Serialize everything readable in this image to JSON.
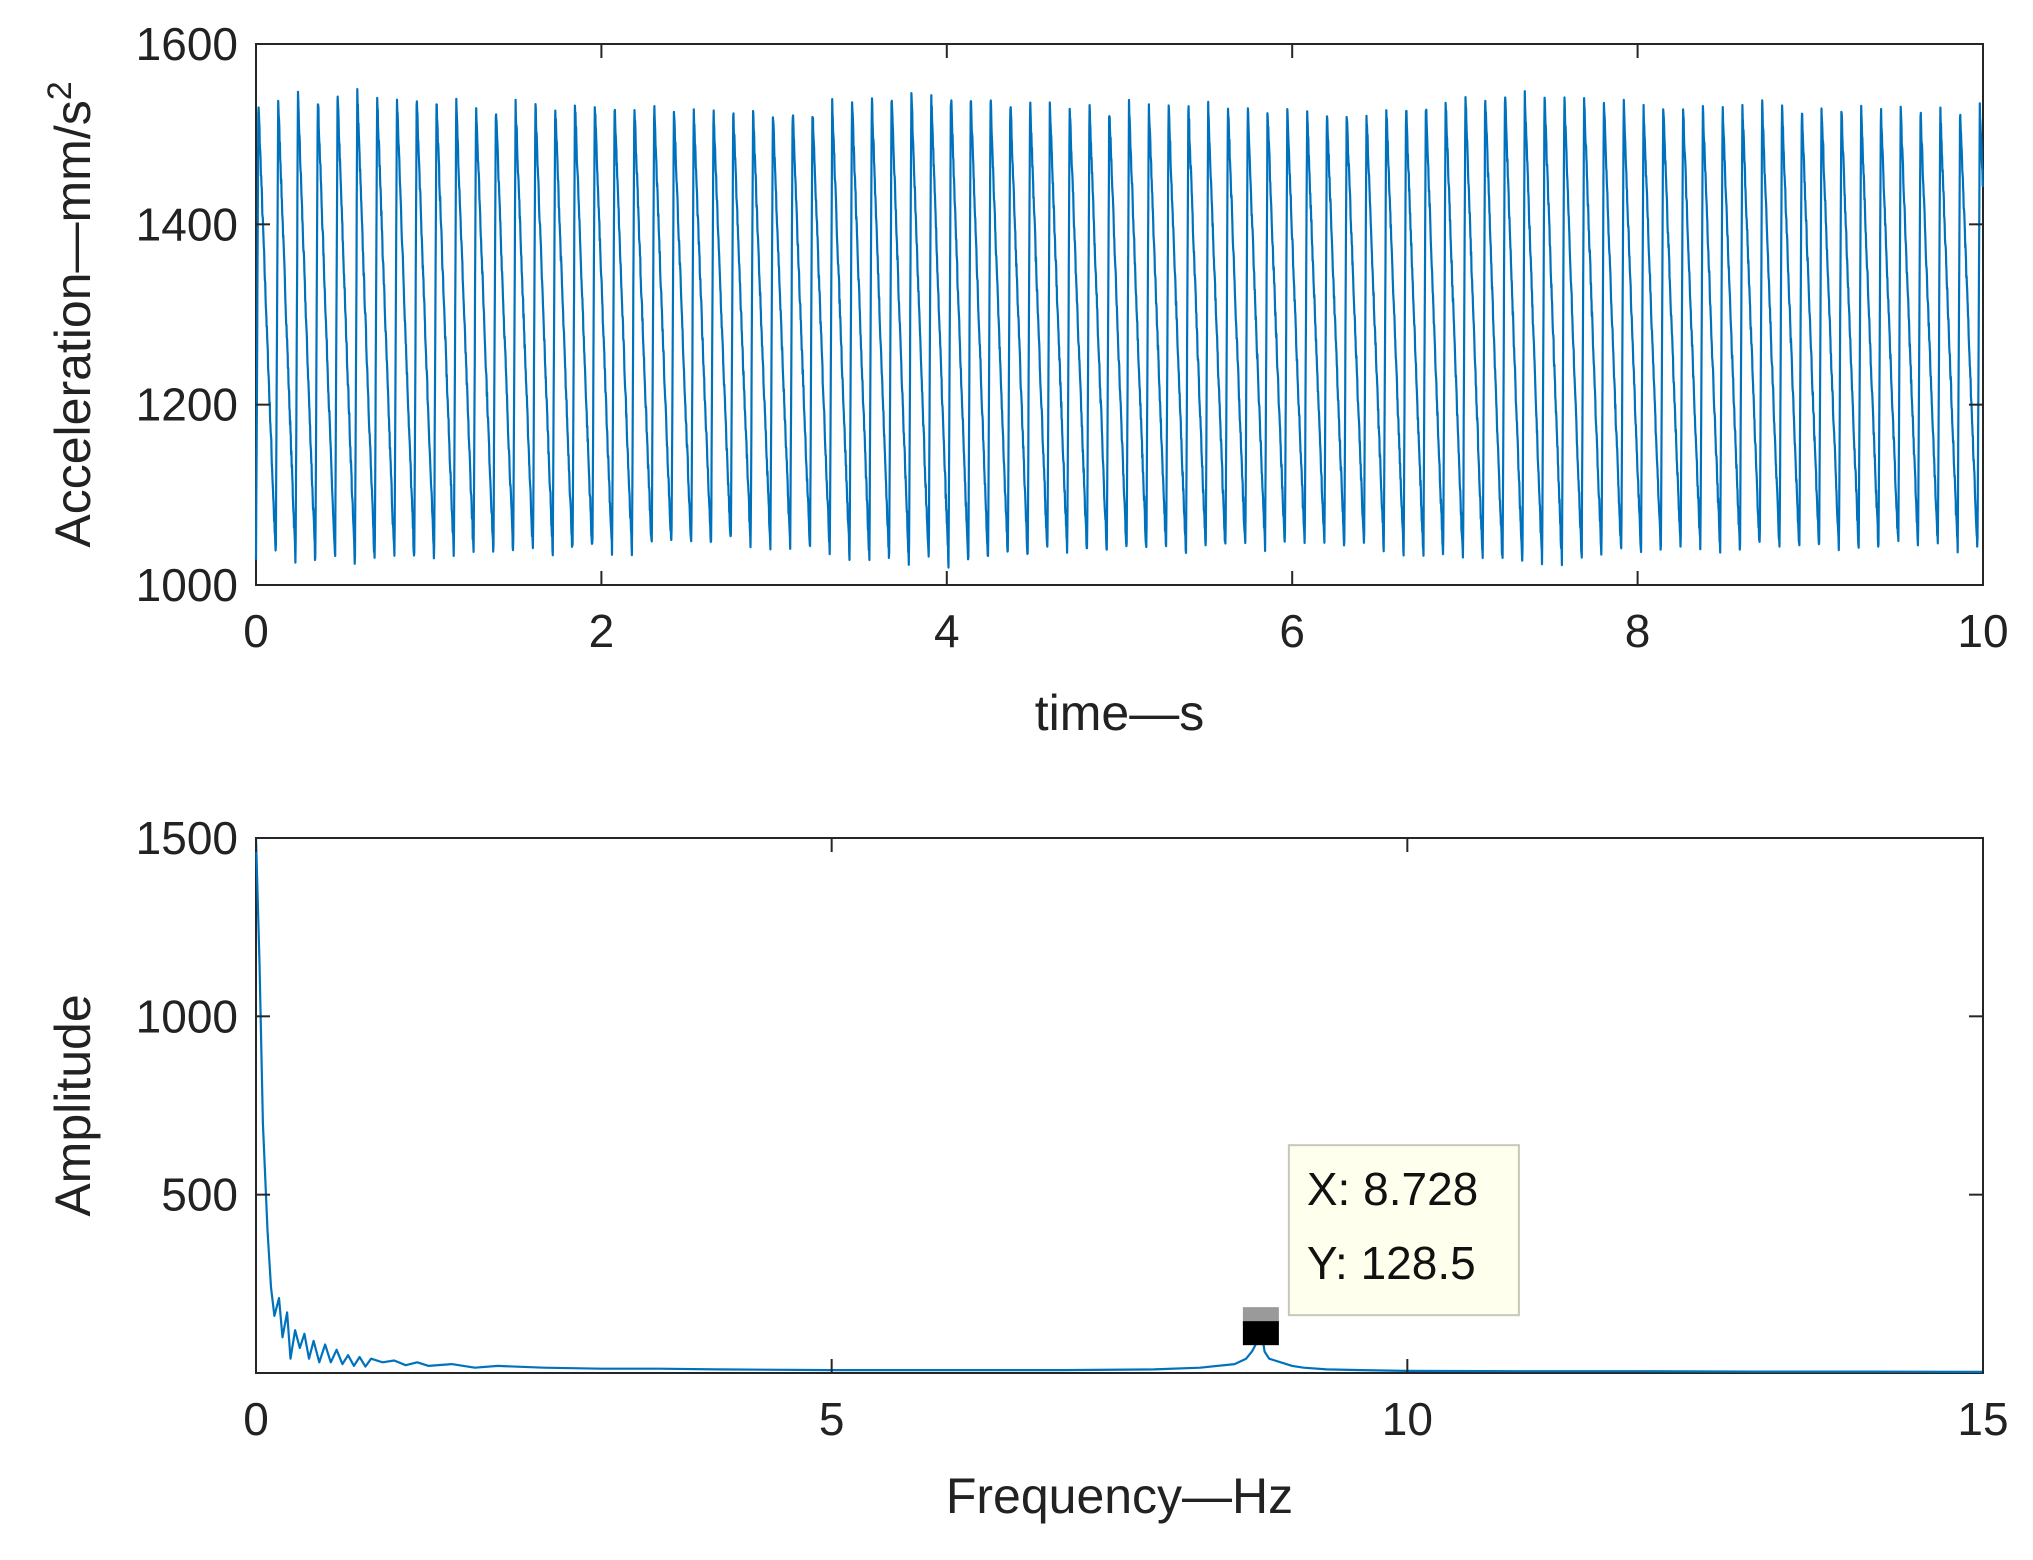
{
  "chart_data": [
    {
      "type": "line",
      "xlabel": "time—s",
      "ylabel": "Acceleration—mm/s",
      "ylabel_superscript": "2",
      "xlim": [
        0,
        10
      ],
      "ylim": [
        1000,
        1600
      ],
      "xticks": [
        "0",
        "2",
        "4",
        "6",
        "8",
        "10"
      ],
      "yticks": [
        "1000",
        "1200",
        "1400",
        "1600"
      ],
      "grid": false,
      "line_color": "#0072BD",
      "signal": {
        "frequency_hz": 8.728,
        "peak_approx": 1535,
        "trough_approx": 1035,
        "max": 1560,
        "min": 1012
      }
    },
    {
      "type": "line",
      "xlabel": "Frequency—Hz",
      "ylabel": "Amplitude",
      "xlim": [
        0,
        15
      ],
      "ylim": [
        0,
        1500
      ],
      "xticks": [
        "0",
        "5",
        "10",
        "15"
      ],
      "yticks": [
        "500",
        "1000",
        "1500"
      ],
      "grid": false,
      "line_color": "#0072BD",
      "x": [
        0,
        0.03,
        0.06,
        0.1,
        0.13,
        0.16,
        0.2,
        0.23,
        0.27,
        0.3,
        0.34,
        0.38,
        0.42,
        0.46,
        0.5,
        0.55,
        0.6,
        0.65,
        0.7,
        0.75,
        0.8,
        0.85,
        0.9,
        0.95,
        1.0,
        1.1,
        1.2,
        1.3,
        1.4,
        1.5,
        1.7,
        1.9,
        2.1,
        2.5,
        3.0,
        3.5,
        4.0,
        5.0,
        6.0,
        7.0,
        7.8,
        8.2,
        8.5,
        8.6,
        8.65,
        8.7,
        8.728,
        8.76,
        8.8,
        8.85,
        8.9,
        9.0,
        9.1,
        9.3,
        9.6,
        10.0,
        11.0,
        12.0,
        13.0,
        14.0,
        15.0
      ],
      "y": [
        1500,
        1150,
        700,
        400,
        240,
        160,
        210,
        100,
        170,
        40,
        120,
        70,
        110,
        40,
        90,
        30,
        80,
        30,
        65,
        25,
        50,
        20,
        45,
        18,
        40,
        30,
        35,
        22,
        30,
        20,
        25,
        15,
        20,
        15,
        12,
        12,
        10,
        8,
        8,
        8,
        10,
        15,
        25,
        40,
        60,
        90,
        128.5,
        60,
        40,
        35,
        30,
        20,
        15,
        10,
        8,
        6,
        5,
        5,
        4,
        4,
        3
      ],
      "datatip": {
        "x": 8.728,
        "y": 128.5,
        "line1": "X: 8.728",
        "line2": "Y: 128.5"
      }
    }
  ]
}
